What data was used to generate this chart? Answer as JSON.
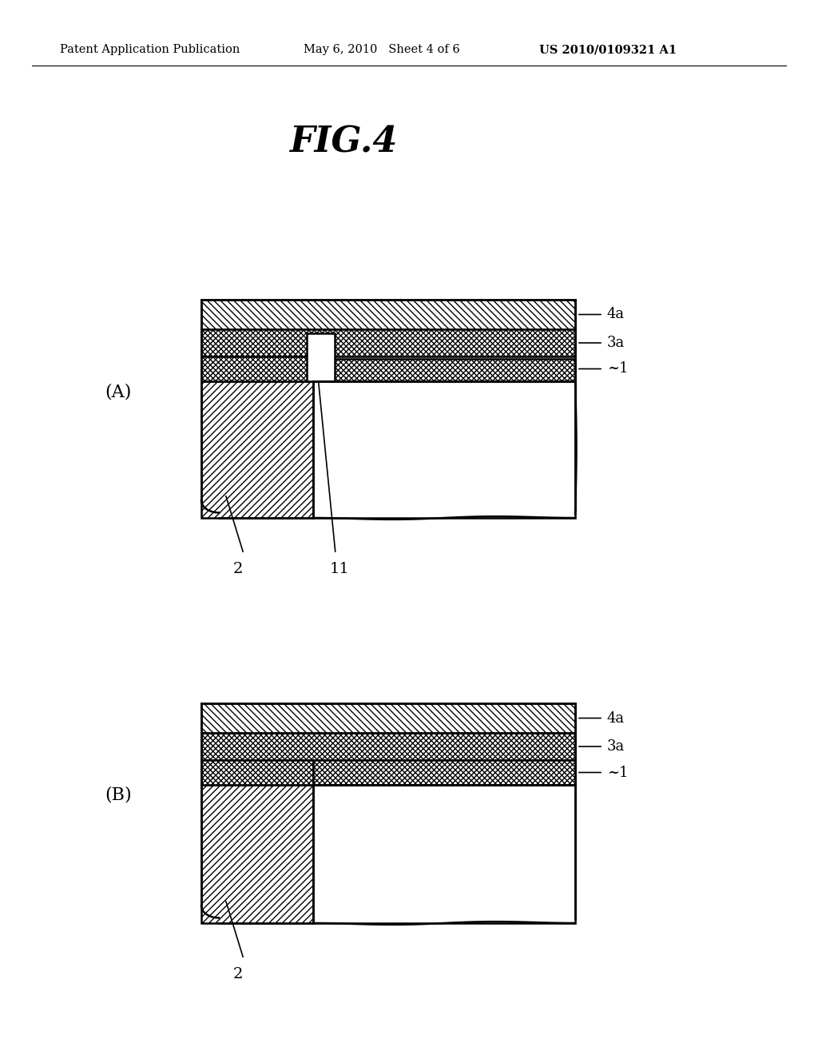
{
  "bg_color": "#ffffff",
  "header_left": "Patent Application Publication",
  "header_center": "May 6, 2010   Sheet 4 of 6",
  "header_right": "US 2010/0109321 A1",
  "fig_title": "FIG.4",
  "label_A": "(A)",
  "label_B": "(B)",
  "labels_A_right": [
    "4a",
    "3a",
    "1"
  ],
  "labels_A_bottom": [
    "2",
    "11"
  ],
  "labels_B_right": [
    "4a",
    "3a",
    "1"
  ],
  "labels_B_bottom": [
    "2"
  ],
  "line_color": "#000000",
  "hatch_color": "#000000",
  "hatch_diagonal": "////",
  "hatch_chevron": "xxxx"
}
